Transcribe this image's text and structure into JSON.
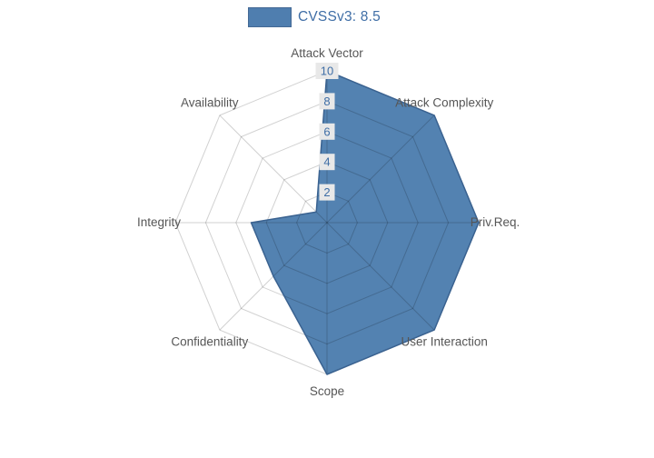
{
  "legend": {
    "label": "CVSSv3: 8.5"
  },
  "chart_data": {
    "type": "radar",
    "title": "CVSSv3: 8.5",
    "categories": [
      "Attack Vector",
      "Attack Complexity",
      "Priv.Req.",
      "User Interaction",
      "Scope",
      "Confidentiality",
      "Integrity",
      "Availability"
    ],
    "series": [
      {
        "name": "CVSSv3: 8.5",
        "values": [
          10,
          10,
          10,
          10,
          10,
          5,
          5,
          1
        ]
      }
    ],
    "range": [
      0,
      10
    ],
    "ticks": [
      2,
      4,
      6,
      8,
      10
    ],
    "grid": true,
    "legend_position": "top-center",
    "colors": {
      "fill": "#4678ab",
      "fill_opacity": 0.93,
      "outline": "#3a6290",
      "grid_line": "rgba(0,0,0,0.18)",
      "axis_label": "#565656",
      "tick_label": "#3f6ea6",
      "tick_label_bg": "#e8e8e8",
      "legend_text": "#3f6ea6",
      "background": "#ffffff"
    }
  }
}
